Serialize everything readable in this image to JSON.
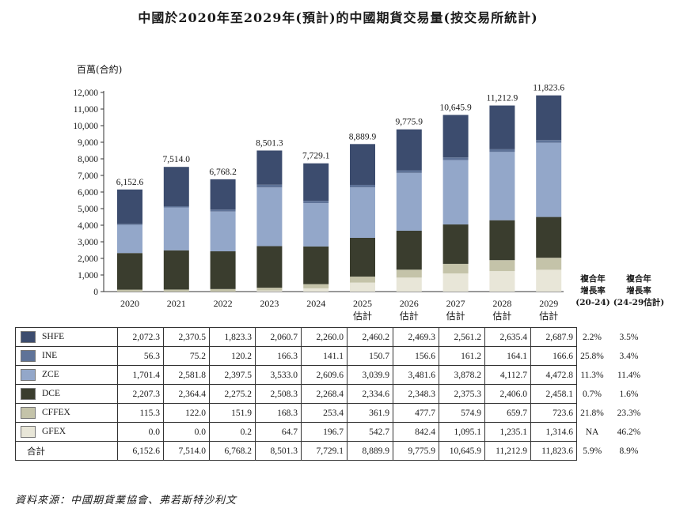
{
  "title": "中國於2020年至2029年(預計)的中國期貨交易量(按交易所統計)",
  "source": "資料來源：中國期貨業協會、弗若斯特沙利文",
  "cagr_headers": [
    {
      "line1": "複合年",
      "line2": "增長率",
      "line3": "(20-24)"
    },
    {
      "line1": "複合年",
      "line2": "增長率",
      "line3": "(24-29估計)"
    }
  ],
  "chart_data": {
    "type": "bar",
    "stacked": true,
    "ylabel": "百萬(合約)",
    "ylim": [
      0,
      12000
    ],
    "yticks": [
      "0",
      "1,000",
      "2,000",
      "3,000",
      "4,000",
      "5,000",
      "6,000",
      "7,000",
      "8,000",
      "9,000",
      "10,000",
      "11,000",
      "12,000"
    ],
    "categories": [
      {
        "year": "2020",
        "note": ""
      },
      {
        "year": "2021",
        "note": ""
      },
      {
        "year": "2022",
        "note": ""
      },
      {
        "year": "2023",
        "note": ""
      },
      {
        "year": "2024",
        "note": ""
      },
      {
        "year": "2025",
        "note": "估計"
      },
      {
        "year": "2026",
        "note": "估計"
      },
      {
        "year": "2027",
        "note": "估計"
      },
      {
        "year": "2028",
        "note": "估計"
      },
      {
        "year": "2029",
        "note": "估計"
      }
    ],
    "series": [
      {
        "name": "GFEX",
        "color": "#e8e6d8",
        "values": [
          0.0,
          0.0,
          0.2,
          64.7,
          196.7,
          542.7,
          842.4,
          1095.1,
          1235.1,
          1314.6
        ]
      },
      {
        "name": "CFFEX",
        "color": "#c4c3a9",
        "values": [
          115.3,
          122.0,
          151.9,
          168.3,
          253.4,
          361.9,
          477.7,
          574.9,
          659.7,
          723.6
        ]
      },
      {
        "name": "DCE",
        "color": "#3a3d2e",
        "values": [
          2207.3,
          2364.4,
          2275.2,
          2508.3,
          2268.4,
          2334.6,
          2348.3,
          2375.3,
          2406.0,
          2458.1
        ]
      },
      {
        "name": "ZCE",
        "color": "#93a7c9",
        "values": [
          1701.4,
          2581.8,
          2397.5,
          3533.0,
          2609.6,
          3039.9,
          3481.6,
          3878.2,
          4112.7,
          4472.8
        ]
      },
      {
        "name": "INE",
        "color": "#5f7398",
        "values": [
          56.3,
          75.2,
          120.2,
          166.3,
          141.1,
          150.7,
          156.6,
          161.2,
          164.1,
          166.6
        ]
      },
      {
        "name": "SHFE",
        "color": "#3c4c6e",
        "values": [
          2072.3,
          2370.5,
          1823.3,
          2060.7,
          2260.0,
          2460.2,
          2469.3,
          2561.2,
          2635.4,
          2687.9
        ]
      }
    ],
    "totals": [
      6152.6,
      7514.0,
      6768.2,
      8501.3,
      7729.1,
      8889.9,
      9775.9,
      10645.9,
      11212.9,
      11823.6
    ],
    "total_labels": [
      "6,152.6",
      "7,514.0",
      "6,768.2",
      "8,501.3",
      "7,729.1",
      "8,889.9",
      "9,775.9",
      "10,645.9",
      "11,212.9",
      "11,823.6"
    ]
  },
  "table": {
    "rows": [
      {
        "name": "SHFE",
        "color": "#3c4c6e",
        "cells": [
          "2,072.3",
          "2,370.5",
          "1,823.3",
          "2,060.7",
          "2,260.0",
          "2,460.2",
          "2,469.3",
          "2,561.2",
          "2,635.4",
          "2,687.9"
        ],
        "cagr1": "2.2%",
        "cagr2": "3.5%"
      },
      {
        "name": "INE",
        "color": "#5f7398",
        "cells": [
          "56.3",
          "75.2",
          "120.2",
          "166.3",
          "141.1",
          "150.7",
          "156.6",
          "161.2",
          "164.1",
          "166.6"
        ],
        "cagr1": "25.8%",
        "cagr2": "3.4%"
      },
      {
        "name": "ZCE",
        "color": "#93a7c9",
        "cells": [
          "1,701.4",
          "2,581.8",
          "2,397.5",
          "3,533.0",
          "2,609.6",
          "3,039.9",
          "3,481.6",
          "3,878.2",
          "4,112.7",
          "4,472.8"
        ],
        "cagr1": "11.3%",
        "cagr2": "11.4%"
      },
      {
        "name": "DCE",
        "color": "#3a3d2e",
        "cells": [
          "2,207.3",
          "2,364.4",
          "2,275.2",
          "2,508.3",
          "2,268.4",
          "2,334.6",
          "2,348.3",
          "2,375.3",
          "2,406.0",
          "2,458.1"
        ],
        "cagr1": "0.7%",
        "cagr2": "1.6%"
      },
      {
        "name": "CFFEX",
        "color": "#c4c3a9",
        "cells": [
          "115.3",
          "122.0",
          "151.9",
          "168.3",
          "253.4",
          "361.9",
          "477.7",
          "574.9",
          "659.7",
          "723.6"
        ],
        "cagr1": "21.8%",
        "cagr2": "23.3%"
      },
      {
        "name": "GFEX",
        "color": "#e8e6d8",
        "cells": [
          "0.0",
          "0.0",
          "0.2",
          "64.7",
          "196.7",
          "542.7",
          "842.4",
          "1,095.1",
          "1,235.1",
          "1,314.6"
        ],
        "cagr1": "NA",
        "cagr2": "46.2%"
      }
    ],
    "total_row": {
      "name": "合計",
      "cells": [
        "6,152.6",
        "7,514.0",
        "6,768.2",
        "8,501.3",
        "7,729.1",
        "8,889.9",
        "9,775.9",
        "10,645.9",
        "11,212.9",
        "11,823.6"
      ],
      "cagr1": "5.9%",
      "cagr2": "8.9%"
    }
  }
}
